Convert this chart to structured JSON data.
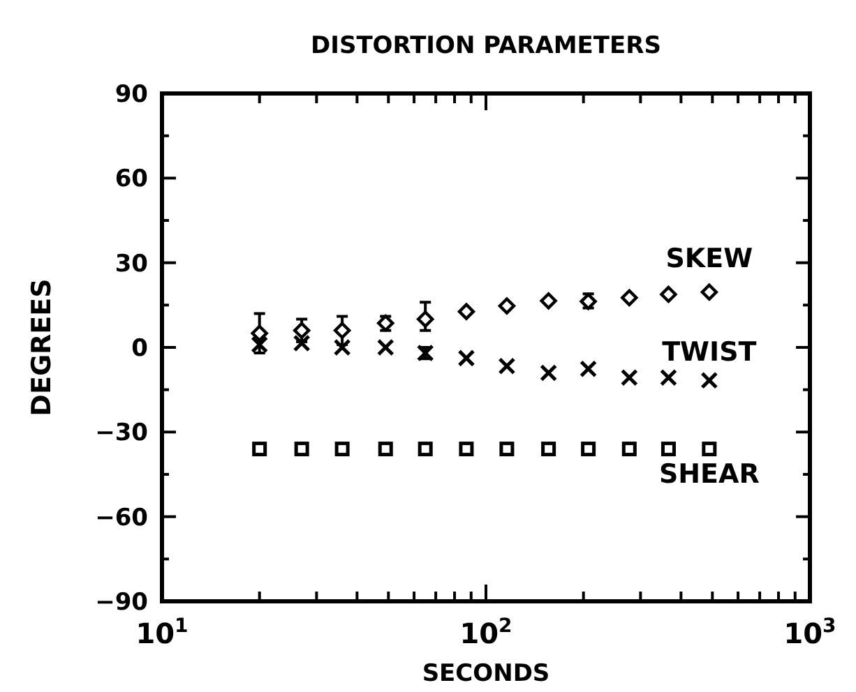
{
  "chart_data": {
    "type": "scatter",
    "title": "DISTORTION PARAMETERS",
    "xlabel": "SECONDS",
    "ylabel": "DEGREES",
    "log": "x",
    "grid": false,
    "legend": "right",
    "xlim": [
      10,
      1000
    ],
    "xticks": [
      {
        "value": 10,
        "label": "10$^{1}$"
      },
      {
        "value": 20,
        "label": null
      },
      {
        "value": 30,
        "label": null
      },
      {
        "value": 40,
        "label": null
      },
      {
        "value": 50,
        "label": null
      },
      {
        "value": 60,
        "label": null
      },
      {
        "value": 70,
        "label": null
      },
      {
        "value": 80,
        "label": null
      },
      {
        "value": 90,
        "label": null
      },
      {
        "value": 100,
        "label": "10$^{2}$"
      },
      {
        "value": 200,
        "label": null
      },
      {
        "value": 300,
        "label": null
      },
      {
        "value": 400,
        "label": null
      },
      {
        "value": 500,
        "label": null
      },
      {
        "value": 600,
        "label": null
      },
      {
        "value": 700,
        "label": null
      },
      {
        "value": 800,
        "label": null
      },
      {
        "value": 900,
        "label": null
      },
      {
        "value": 1000,
        "label": "10$^{3}$"
      }
    ],
    "ylim": [
      -90,
      90
    ],
    "yticks": [
      -90,
      {
        "value": -75,
        "label": null
      },
      -60,
      {
        "value": -45,
        "label": null
      },
      -30,
      {
        "value": -15,
        "label": null
      },
      0,
      {
        "value": 15,
        "label": null
      },
      30,
      {
        "value": 45,
        "label": null
      },
      60,
      {
        "value": 75,
        "label": null
      },
      90
    ],
    "x": [
      20,
      27,
      36,
      49,
      65,
      87,
      116,
      156,
      207,
      277,
      366,
      489
    ],
    "series": [
      {
        "name": "SKEW",
        "color": "#000000",
        "marker": "diamond",
        "values": [
          5,
          6,
          6,
          8.6,
          10,
          12.7,
          14.7,
          16.5,
          16.3,
          17.6,
          18.8,
          19.6
        ],
        "errors": [
          [
            -2,
            12
          ],
          [
            2,
            10
          ],
          [
            1,
            11
          ],
          [
            6,
            11
          ],
          [
            6,
            16
          ],
          null,
          null,
          null,
          [
            14,
            19
          ],
          null,
          null,
          null
        ]
      },
      {
        "name": "TWIST",
        "color": "#000000",
        "marker": "cross",
        "values": [
          1,
          1.5,
          0,
          0,
          -2,
          -3.8,
          -6.6,
          -9,
          -7.6,
          -10.7,
          -10.7,
          -11.7
        ],
        "errors": [
          null,
          null,
          null,
          null,
          [
            -4,
            0
          ],
          null,
          null,
          null,
          null,
          null,
          null,
          null
        ]
      },
      {
        "name": "SHEAR",
        "color": "#000000",
        "marker": "square",
        "values": [
          -36,
          -36,
          -36,
          -36,
          -36,
          -36,
          -36,
          -36,
          -36,
          -36,
          -36,
          -36
        ]
      }
    ]
  }
}
